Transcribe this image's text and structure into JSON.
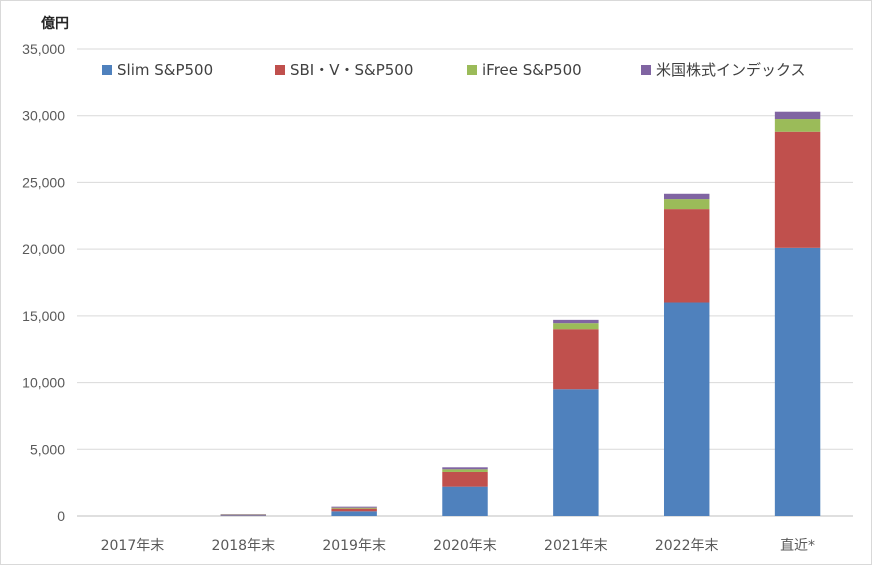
{
  "chart_data": {
    "type": "bar",
    "stacked": true,
    "unit_label": "億円",
    "categories": [
      "2017年末",
      "2018年末",
      "2019年末",
      "2020年末",
      "2021年末",
      "2022年末",
      "直近*"
    ],
    "ylim": [
      0,
      35000
    ],
    "yticks": [
      0,
      5000,
      10000,
      15000,
      20000,
      25000,
      30000,
      35000
    ],
    "ytick_labels": [
      "0",
      "5,000",
      "10,000",
      "15,000",
      "20,000",
      "25,000",
      "30,000",
      "35,000"
    ],
    "grid": true,
    "legend_position": "top",
    "series": [
      {
        "name": "Slim S&P500",
        "color": "#4f81bd",
        "values": [
          0,
          50,
          350,
          2200,
          9500,
          16000,
          20100
        ]
      },
      {
        "name": "SBI・V・S&P500",
        "color": "#c0504d",
        "values": [
          0,
          40,
          200,
          1100,
          4500,
          7000,
          8700
        ]
      },
      {
        "name": "iFree S&P500",
        "color": "#9bbb59",
        "values": [
          0,
          20,
          70,
          200,
          450,
          750,
          950
        ]
      },
      {
        "name": "米国株式インデックス",
        "color": "#8064a2",
        "values": [
          0,
          30,
          80,
          150,
          250,
          400,
          550
        ]
      }
    ]
  }
}
